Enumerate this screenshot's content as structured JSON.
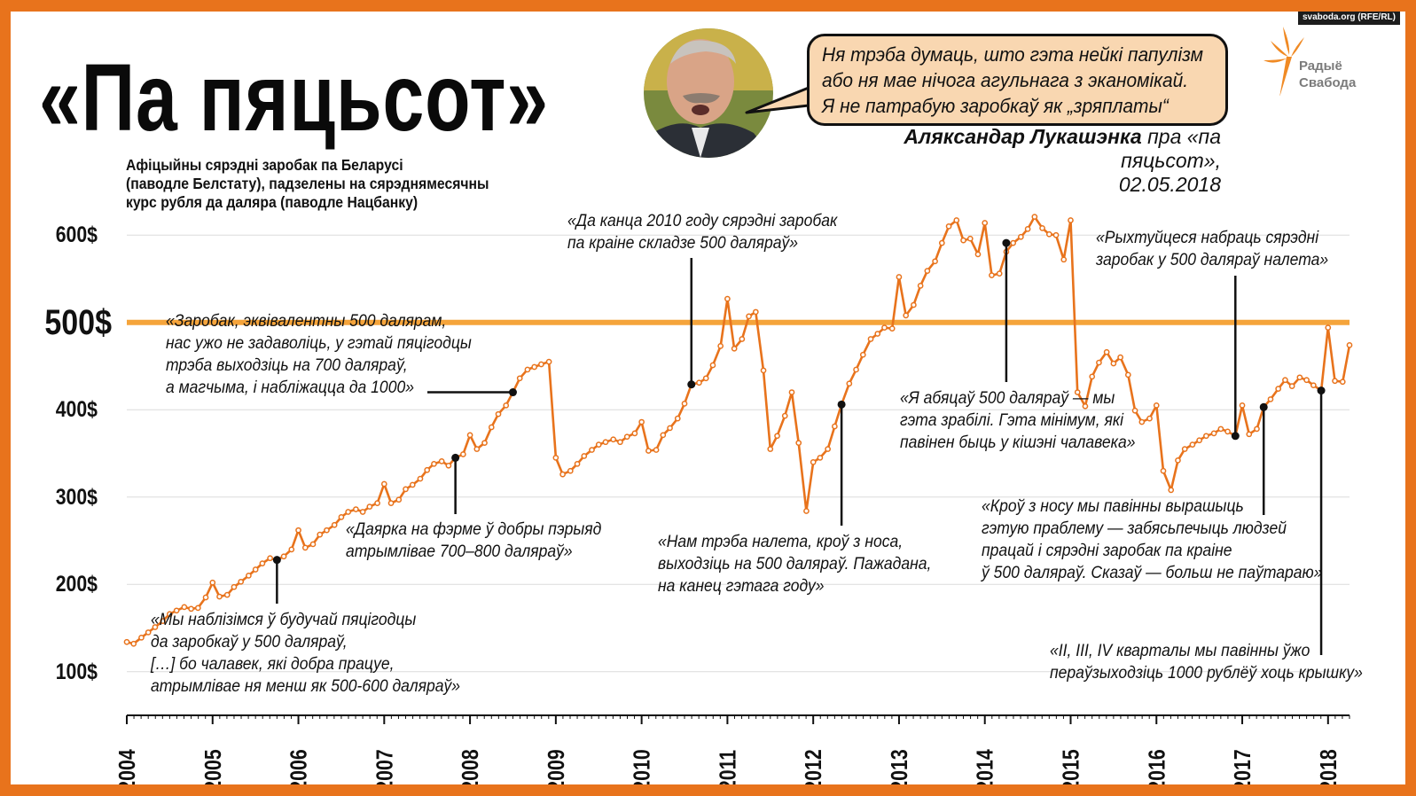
{
  "credit": "svaboda.org (RFE/RL)",
  "title": "«Па пяцьсот»",
  "speech_bubble": [
    "Ня трэба думаць, што гэта нейкі папулізм",
    "або ня мае нічога агульнага з эканомікай.",
    "Я не патрабую заробкаў як „зряплаты“"
  ],
  "attribution": {
    "name": "Аляксандар Лукашэнка",
    "rest": "пра «па пяцьсот»,",
    "date": "02.05.2018"
  },
  "logo": {
    "line1": "Радыё",
    "line2": "Свабода",
    "icon": "torch-flame-icon"
  },
  "subtitle": [
    "Афіцыйны сярэдні заробак па Беларусі",
    "(паводле Белстату), падзелены на сярэднямесячны",
    "курс рубля да даляра (паводле Нацбанку)"
  ],
  "colors": {
    "frame": "#e8731c",
    "line": "#e8731c",
    "marker": "#e8731c",
    "reference": "#f5a43b",
    "bubble": "#f9d7b1"
  },
  "chart_data": {
    "type": "line",
    "x_unit": "year",
    "y_unit": "$",
    "xlim": [
      2004,
      2018.25
    ],
    "ylim": [
      50,
      650
    ],
    "x_ticks": [
      "2004",
      "2005",
      "2006",
      "2007",
      "2008",
      "2009",
      "2010",
      "2011",
      "2012",
      "2013",
      "2014",
      "2015",
      "2016",
      "2017",
      "2018"
    ],
    "y_ticks": [
      "100$",
      "200$",
      "300$",
      "400$",
      "500$",
      "600$"
    ],
    "y_tick_values": [
      100,
      200,
      300,
      400,
      500,
      600
    ],
    "highlight_tick": "500$",
    "reference_line": 500,
    "grid": true,
    "series": [
      {
        "values": [
          [
            2004.0,
            134
          ],
          [
            2004.08,
            132
          ],
          [
            2004.17,
            139
          ],
          [
            2004.25,
            145
          ],
          [
            2004.33,
            151
          ],
          [
            2004.42,
            158
          ],
          [
            2004.5,
            166
          ],
          [
            2004.58,
            170
          ],
          [
            2004.67,
            174
          ],
          [
            2004.75,
            172
          ],
          [
            2004.83,
            173
          ],
          [
            2004.92,
            185
          ],
          [
            2005.0,
            202
          ],
          [
            2005.08,
            186
          ],
          [
            2005.17,
            188
          ],
          [
            2005.25,
            197
          ],
          [
            2005.33,
            203
          ],
          [
            2005.42,
            210
          ],
          [
            2005.5,
            217
          ],
          [
            2005.58,
            224
          ],
          [
            2005.67,
            230
          ],
          [
            2005.75,
            228
          ],
          [
            2005.83,
            232
          ],
          [
            2005.92,
            240
          ],
          [
            2006.0,
            262
          ],
          [
            2006.08,
            242
          ],
          [
            2006.17,
            246
          ],
          [
            2006.25,
            257
          ],
          [
            2006.33,
            262
          ],
          [
            2006.42,
            268
          ],
          [
            2006.5,
            277
          ],
          [
            2006.58,
            283
          ],
          [
            2006.67,
            286
          ],
          [
            2006.75,
            283
          ],
          [
            2006.83,
            289
          ],
          [
            2006.92,
            293
          ],
          [
            2007.0,
            315
          ],
          [
            2007.08,
            293
          ],
          [
            2007.17,
            297
          ],
          [
            2007.25,
            309
          ],
          [
            2007.33,
            314
          ],
          [
            2007.42,
            321
          ],
          [
            2007.5,
            331
          ],
          [
            2007.58,
            338
          ],
          [
            2007.67,
            341
          ],
          [
            2007.75,
            336
          ],
          [
            2007.83,
            345
          ],
          [
            2007.92,
            349
          ],
          [
            2008.0,
            371
          ],
          [
            2008.08,
            355
          ],
          [
            2008.17,
            362
          ],
          [
            2008.25,
            380
          ],
          [
            2008.33,
            395
          ],
          [
            2008.42,
            405
          ],
          [
            2008.5,
            420
          ],
          [
            2008.58,
            436
          ],
          [
            2008.67,
            446
          ],
          [
            2008.75,
            449
          ],
          [
            2008.83,
            452
          ],
          [
            2008.92,
            455
          ],
          [
            2009.0,
            345
          ],
          [
            2009.08,
            326
          ],
          [
            2009.17,
            330
          ],
          [
            2009.25,
            338
          ],
          [
            2009.33,
            347
          ],
          [
            2009.42,
            354
          ],
          [
            2009.5,
            360
          ],
          [
            2009.58,
            363
          ],
          [
            2009.67,
            366
          ],
          [
            2009.75,
            363
          ],
          [
            2009.83,
            369
          ],
          [
            2009.92,
            373
          ],
          [
            2010.0,
            386
          ],
          [
            2010.08,
            353
          ],
          [
            2010.17,
            354
          ],
          [
            2010.25,
            371
          ],
          [
            2010.33,
            379
          ],
          [
            2010.42,
            390
          ],
          [
            2010.5,
            407
          ],
          [
            2010.58,
            429
          ],
          [
            2010.67,
            431
          ],
          [
            2010.75,
            436
          ],
          [
            2010.83,
            451
          ],
          [
            2010.92,
            473
          ],
          [
            2011.0,
            527
          ],
          [
            2011.08,
            470
          ],
          [
            2011.17,
            481
          ],
          [
            2011.25,
            507
          ],
          [
            2011.33,
            512
          ],
          [
            2011.42,
            445
          ],
          [
            2011.5,
            355
          ],
          [
            2011.58,
            370
          ],
          [
            2011.67,
            393
          ],
          [
            2011.75,
            420
          ],
          [
            2011.83,
            362
          ],
          [
            2011.92,
            284
          ],
          [
            2012.0,
            340
          ],
          [
            2012.08,
            345
          ],
          [
            2012.17,
            355
          ],
          [
            2012.25,
            381
          ],
          [
            2012.33,
            406
          ],
          [
            2012.42,
            430
          ],
          [
            2012.5,
            446
          ],
          [
            2012.58,
            463
          ],
          [
            2012.67,
            481
          ],
          [
            2012.75,
            487
          ],
          [
            2012.83,
            494
          ],
          [
            2012.92,
            493
          ],
          [
            2013.0,
            552
          ],
          [
            2013.08,
            508
          ],
          [
            2013.17,
            520
          ],
          [
            2013.25,
            542
          ],
          [
            2013.33,
            559
          ],
          [
            2013.42,
            570
          ],
          [
            2013.5,
            591
          ],
          [
            2013.58,
            610
          ],
          [
            2013.67,
            617
          ],
          [
            2013.75,
            594
          ],
          [
            2013.83,
            596
          ],
          [
            2013.92,
            578
          ],
          [
            2014.0,
            614
          ],
          [
            2014.08,
            554
          ],
          [
            2014.17,
            556
          ],
          [
            2014.25,
            581
          ],
          [
            2014.33,
            591
          ],
          [
            2014.42,
            598
          ],
          [
            2014.5,
            607
          ],
          [
            2014.58,
            621
          ],
          [
            2014.67,
            608
          ],
          [
            2014.75,
            601
          ],
          [
            2014.83,
            600
          ],
          [
            2014.92,
            572
          ],
          [
            2015.0,
            617
          ],
          [
            2015.08,
            420
          ],
          [
            2015.17,
            404
          ],
          [
            2015.25,
            438
          ],
          [
            2015.33,
            454
          ],
          [
            2015.42,
            466
          ],
          [
            2015.5,
            453
          ],
          [
            2015.58,
            460
          ],
          [
            2015.67,
            440
          ],
          [
            2015.75,
            399
          ],
          [
            2015.83,
            386
          ],
          [
            2015.92,
            390
          ],
          [
            2016.0,
            405
          ],
          [
            2016.08,
            330
          ],
          [
            2016.17,
            308
          ],
          [
            2016.25,
            342
          ],
          [
            2016.33,
            355
          ],
          [
            2016.42,
            360
          ],
          [
            2016.5,
            365
          ],
          [
            2016.58,
            370
          ],
          [
            2016.67,
            373
          ],
          [
            2016.75,
            378
          ],
          [
            2016.83,
            375
          ],
          [
            2016.92,
            370
          ],
          [
            2017.0,
            405
          ],
          [
            2017.08,
            372
          ],
          [
            2017.17,
            378
          ],
          [
            2017.25,
            403
          ],
          [
            2017.33,
            412
          ],
          [
            2017.42,
            424
          ],
          [
            2017.5,
            434
          ],
          [
            2017.58,
            427
          ],
          [
            2017.67,
            437
          ],
          [
            2017.75,
            434
          ],
          [
            2017.83,
            428
          ],
          [
            2017.92,
            422
          ],
          [
            2018.0,
            494
          ],
          [
            2018.08,
            433
          ],
          [
            2018.17,
            432
          ],
          [
            2018.25,
            474
          ]
        ]
      }
    ],
    "markers": [
      [
        2005.75,
        228
      ],
      [
        2007.83,
        345
      ],
      [
        2008.5,
        420
      ],
      [
        2010.58,
        429
      ],
      [
        2012.33,
        406
      ],
      [
        2014.25,
        591
      ],
      [
        2016.92,
        370
      ],
      [
        2017.25,
        403
      ],
      [
        2017.92,
        422
      ]
    ],
    "annotations": [
      {
        "lines": [
          "«Мы наблізімся ў будучай пяцігодцы",
          "да заробкаў у 500 даляраў,",
          "[…] бо чалавек, які добра працуе,",
          "атрымлівае ня менш як 500-600 даляраў»"
        ]
      },
      {
        "lines": [
          "«Даярка на фэрме ў добры пэрыяд",
          "атрымлівае 700–800 даляраў»"
        ]
      },
      {
        "lines": [
          "«Заробак, эквівалентны 500 далярам,",
          "нас ужо не задаволіць, у гэтай пяцігодцы",
          "трэба выходзіць на 700 даляраў,",
          "а магчыма, і набліжацца да 1000»"
        ]
      },
      {
        "lines": [
          "«Да канца 2010 году сярэдні заробак",
          "па краіне складзе 500 даляраў»"
        ]
      },
      {
        "lines": [
          "«Нам трэба налета, кроў з носа,",
          "выходзіць на 500 даляраў. Пажадана,",
          "на канец гэтага году»"
        ]
      },
      {
        "lines": [
          "«Я абяцаў 500 даляраў — мы",
          "гэта зрабілі. Гэта мінімум, які",
          "павінен быць у кішэні чалавека»"
        ]
      },
      {
        "lines": [
          "«Рыхтуйцеся набраць сярэдні",
          "заробак у 500 даляраў налета»"
        ]
      },
      {
        "lines": [
          "«Кроў з носу мы павінны вырашыць",
          "гэтую праблему — забясьпечыць людзей",
          "працай і сярэдні заробак па краіне",
          "ў 500 даляраў. Сказаў — больш не паўтараю»"
        ]
      },
      {
        "lines": [
          "«II, III, IV кварталы мы павінны ўжо",
          "пераўзыходзіць 1000 рублёў хоць крышку»"
        ]
      }
    ]
  }
}
